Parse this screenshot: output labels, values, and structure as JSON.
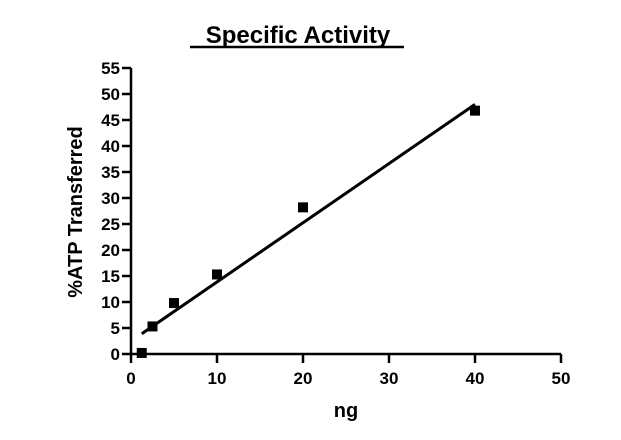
{
  "chart_data": {
    "type": "scatter",
    "title": "Specific Activity",
    "xlabel": "ng",
    "ylabel": "%ATP Transferred",
    "xlim": [
      0,
      50
    ],
    "ylim": [
      0,
      55
    ],
    "xticks": [
      0,
      10,
      20,
      30,
      40,
      50
    ],
    "yticks": [
      0,
      5,
      10,
      15,
      20,
      25,
      30,
      35,
      40,
      45,
      50,
      55
    ],
    "grid": false,
    "legend": "none",
    "points": [
      {
        "x": 1.25,
        "y": 0.2
      },
      {
        "x": 2.5,
        "y": 5.3
      },
      {
        "x": 5,
        "y": 9.8
      },
      {
        "x": 10,
        "y": 15.3
      },
      {
        "x": 20,
        "y": 28.2
      },
      {
        "x": 40,
        "y": 46.8
      }
    ],
    "fit_line": {
      "x_start": 1.25,
      "y_start": 3.9,
      "x_end": 40,
      "y_end": 48.0
    },
    "marker_color": "#000000",
    "line_color": "#000000"
  }
}
